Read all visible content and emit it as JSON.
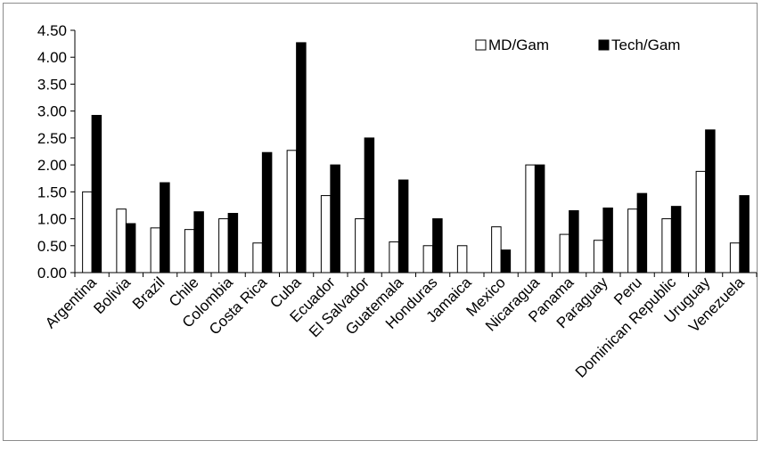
{
  "chart_data": {
    "type": "bar",
    "categories": [
      "Argentina",
      "Bolivia",
      "Brazil",
      "Chile",
      "Colombia",
      "Costa Rica",
      "Cuba",
      "Ecuador",
      "El Salvador",
      "Guatemala",
      "Honduras",
      "Jamaica",
      "Mexico",
      "Nicaragua",
      "Panama",
      "Paraguay",
      "Peru",
      "Dominican Republic",
      "Uruguay",
      "Venezuela"
    ],
    "series": [
      {
        "name": "MD/Gam",
        "color": "#ffffff",
        "values": [
          1.5,
          1.18,
          0.83,
          0.8,
          1.0,
          0.55,
          2.27,
          1.43,
          1.0,
          0.57,
          0.5,
          0.5,
          0.85,
          2.0,
          0.71,
          0.6,
          1.18,
          1.0,
          1.88,
          0.55
        ]
      },
      {
        "name": "Tech/Gam",
        "color": "#000000",
        "values": [
          2.92,
          0.91,
          1.67,
          1.13,
          1.1,
          2.23,
          4.27,
          2.0,
          2.5,
          1.72,
          1.0,
          0.0,
          0.42,
          2.0,
          1.15,
          1.2,
          1.47,
          1.23,
          2.65,
          1.43
        ]
      }
    ],
    "yticks": [
      "0.00",
      "0.50",
      "1.00",
      "1.50",
      "2.00",
      "2.50",
      "3.00",
      "3.50",
      "4.00",
      "4.50"
    ],
    "ylim": [
      0,
      4.5
    ],
    "legend": "top-right",
    "grid": false
  }
}
